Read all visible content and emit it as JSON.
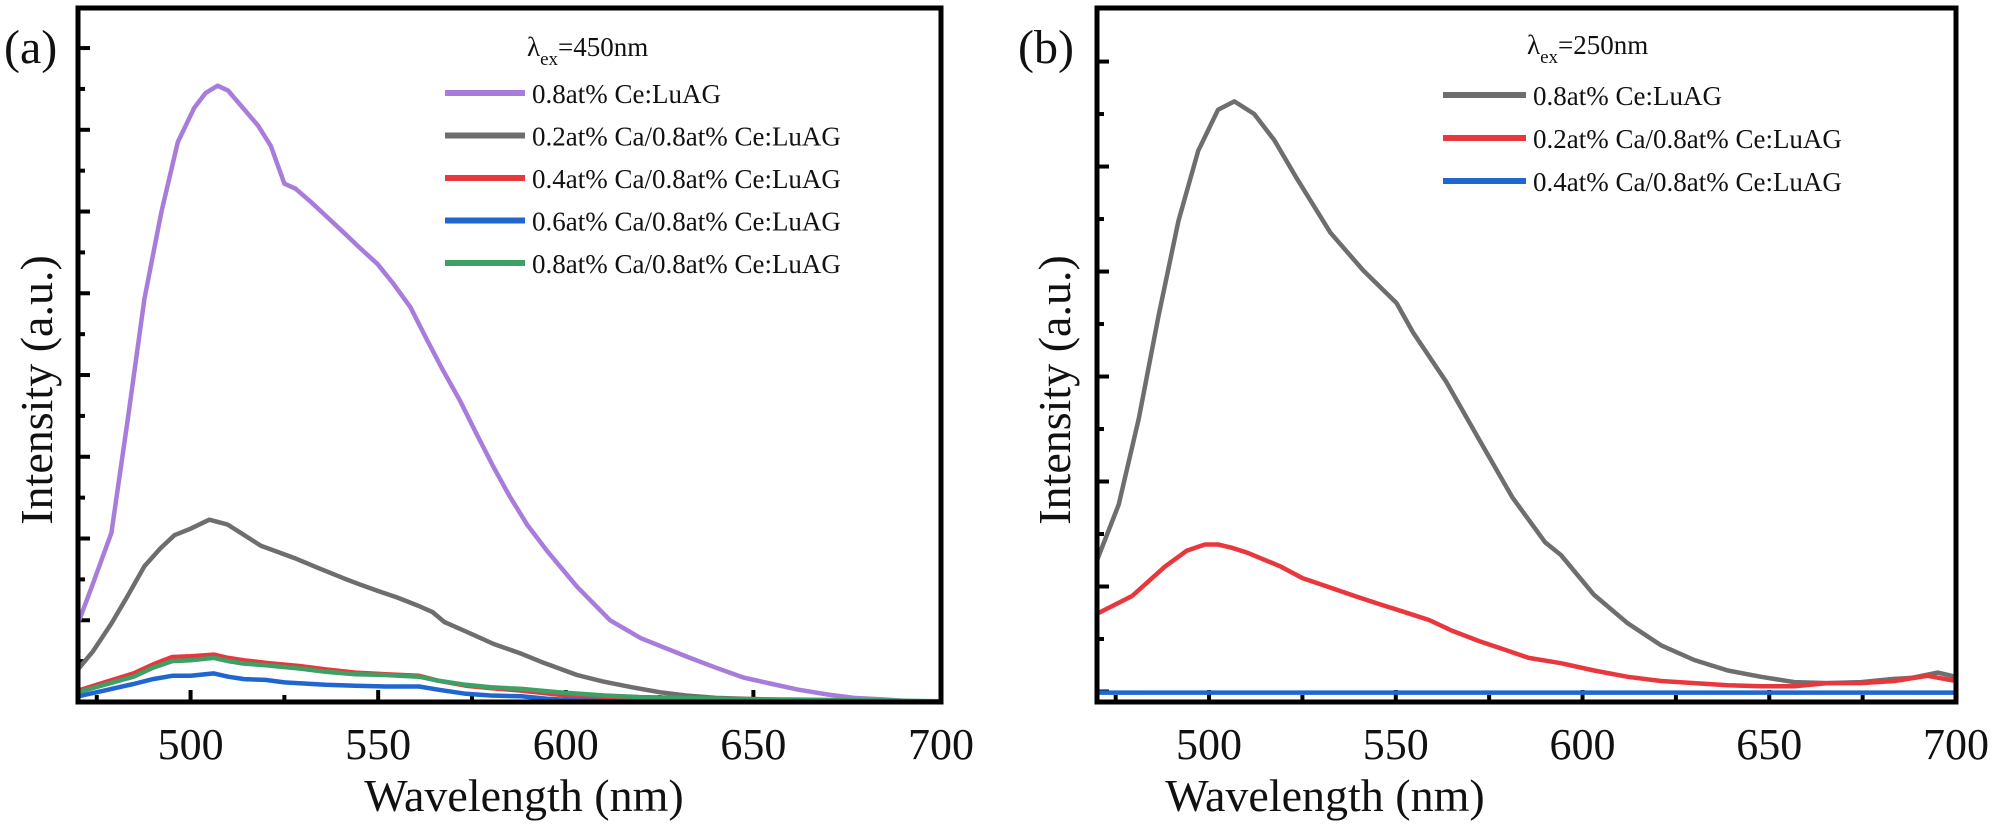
{
  "chart_data": [
    {
      "type": "line",
      "panel_label": "(a)",
      "xlabel": "Wavelength (nm)",
      "ylabel": "Intensity (a.u.)",
      "xlim": [
        470,
        700
      ],
      "ylim": [
        0,
        8.49
      ],
      "x_ticks": [
        500,
        550,
        600,
        650,
        700
      ],
      "x_tick_labels": [
        "500",
        "550",
        "600",
        "650",
        "700"
      ],
      "x_minor_ticks": [
        475,
        525,
        575,
        625,
        675
      ],
      "y_major_ticks": [
        0,
        1,
        2,
        3,
        4,
        5,
        6,
        7,
        8
      ],
      "y_minor_ticks": [
        0.5,
        1.5,
        2.5,
        3.5,
        4.5,
        5.5,
        6.5,
        7.5
      ],
      "y_tick_labels": [],
      "grid": false,
      "legend_title": {
        "symbol": "λ",
        "sub": "ex",
        "text": "=450nm"
      },
      "legend_position": "top-right",
      "series": [
        {
          "name": "0.8at% Ce:LuAG",
          "color": "#A77CDB",
          "x": [
            470,
            474,
            478.9,
            483.3,
            487.7,
            492.2,
            496.6,
            501,
            504,
            507.2,
            510,
            514.3,
            518,
            521.4,
            525,
            528,
            532,
            536,
            540.9,
            545,
            549.8,
            554,
            558.6,
            563,
            567,
            571.9,
            576,
            580.8,
            585,
            589.7,
            595,
            603,
            611.8,
            620,
            632.5,
            640,
            647.3,
            655,
            662,
            670,
            676.8,
            685,
            692,
            700
          ],
          "y": [
            0.96,
            1.45,
            2.07,
            3.47,
            4.93,
            5.99,
            6.85,
            7.27,
            7.45,
            7.54,
            7.48,
            7.25,
            7.05,
            6.8,
            6.34,
            6.28,
            6.12,
            5.95,
            5.74,
            5.56,
            5.36,
            5.12,
            4.83,
            4.43,
            4.08,
            3.68,
            3.3,
            2.87,
            2.52,
            2.17,
            1.85,
            1.41,
            1.0,
            0.78,
            0.55,
            0.42,
            0.3,
            0.22,
            0.15,
            0.09,
            0.05,
            0.03,
            0.01,
            0.0
          ]
        },
        {
          "name": "0.2at% Ca/0.8at% Ce:LuAG",
          "color": "#6E6E6E",
          "x": [
            470,
            474,
            478.9,
            483,
            487.7,
            492,
            495.7,
            500,
            505,
            509.9,
            514,
            518.8,
            523,
            527.7,
            534,
            541,
            545,
            549.8,
            555,
            560.5,
            564.5,
            567.6,
            574,
            580.8,
            588.2,
            594.1,
            603,
            610,
            617.7,
            625,
            632,
            640,
            647.3,
            655,
            665,
            680,
            700
          ],
          "y": [
            0.4,
            0.62,
            0.96,
            1.28,
            1.66,
            1.88,
            2.04,
            2.12,
            2.23,
            2.17,
            2.05,
            1.91,
            1.84,
            1.76,
            1.64,
            1.51,
            1.44,
            1.36,
            1.28,
            1.18,
            1.1,
            0.98,
            0.85,
            0.71,
            0.59,
            0.48,
            0.33,
            0.25,
            0.18,
            0.12,
            0.08,
            0.05,
            0.04,
            0.03,
            0.02,
            0.01,
            0.0
          ]
        },
        {
          "name": "0.4at% Ca/0.8at% Ce:LuAG",
          "color": "#E8383D",
          "x": [
            470,
            477,
            484.8,
            490,
            495.1,
            500,
            506.2,
            510,
            514.3,
            520,
            529,
            536,
            543.9,
            552,
            560.9,
            566,
            573.4,
            580,
            588.2,
            598,
            610.3,
            620,
            632.5,
            650,
            675,
            700
          ],
          "y": [
            0.14,
            0.24,
            0.35,
            0.46,
            0.55,
            0.56,
            0.58,
            0.54,
            0.51,
            0.48,
            0.44,
            0.4,
            0.36,
            0.34,
            0.32,
            0.26,
            0.2,
            0.17,
            0.14,
            0.09,
            0.04,
            0.02,
            0.01,
            0.01,
            0.0,
            0.0
          ]
        },
        {
          "name": "0.6at% Ca/0.8at% Ce:LuAG",
          "color": "#1F66D1",
          "x": [
            470,
            477,
            484.8,
            490,
            495.1,
            500,
            506.2,
            510,
            514.3,
            520,
            525,
            529,
            536,
            543.9,
            552,
            560.9,
            566,
            573.4,
            580,
            588.2,
            595,
            603,
            617.9,
            640,
            670,
            700
          ],
          "y": [
            0.07,
            0.14,
            0.22,
            0.28,
            0.32,
            0.32,
            0.35,
            0.31,
            0.28,
            0.27,
            0.24,
            0.23,
            0.21,
            0.2,
            0.19,
            0.19,
            0.15,
            0.1,
            0.08,
            0.07,
            0.04,
            0.02,
            0.0,
            0.0,
            0.0,
            0.0
          ]
        },
        {
          "name": "0.8at% Ca/0.8at% Ce:LuAG",
          "color": "#3DA065",
          "x": [
            470,
            477,
            484.8,
            490,
            495.1,
            500,
            506.2,
            510,
            514.3,
            520,
            529,
            536,
            543.9,
            552,
            560.9,
            566,
            573.4,
            580,
            588.2,
            598,
            610.3,
            620,
            632.5,
            650,
            660,
            680,
            700
          ],
          "y": [
            0.12,
            0.21,
            0.31,
            0.42,
            0.5,
            0.51,
            0.54,
            0.5,
            0.47,
            0.45,
            0.41,
            0.37,
            0.34,
            0.33,
            0.31,
            0.26,
            0.21,
            0.18,
            0.16,
            0.12,
            0.08,
            0.06,
            0.05,
            0.03,
            0.03,
            0.02,
            0.01
          ]
        }
      ]
    },
    {
      "type": "line",
      "panel_label": "(b)",
      "xlabel": "Wavelength (nm)",
      "ylabel": "Intensity (a.u.)",
      "xlim": [
        470,
        700
      ],
      "ylim": [
        0,
        6.61
      ],
      "x_ticks": [
        500,
        550,
        600,
        650,
        700
      ],
      "x_tick_labels": [
        "500",
        "550",
        "600",
        "650",
        "700"
      ],
      "x_minor_ticks": [
        475,
        525,
        575,
        625,
        675
      ],
      "y_major_ticks": [
        0.1,
        1.1,
        2.1,
        3.1,
        4.1,
        5.1,
        6.1
      ],
      "y_minor_ticks": [
        0.6,
        1.6,
        2.6,
        3.6,
        4.6,
        5.6
      ],
      "y_tick_labels": [],
      "grid": false,
      "legend_title": {
        "symbol": "λ",
        "sub": "ex",
        "text": "=250nm"
      },
      "legend_position": "top-right",
      "series": [
        {
          "name": "0.8at% Ce:LuAG",
          "color": "#6E6E6E",
          "x": [
            470,
            475.8,
            481.2,
            486.5,
            491.8,
            497.1,
            502.4,
            506.8,
            512.1,
            517.5,
            523.6,
            532.5,
            541.3,
            550.2,
            554.6,
            563.5,
            572.3,
            581.2,
            590,
            594.2,
            603.1,
            612.1,
            621,
            629.9,
            638.9,
            647.8,
            656.7,
            665.6,
            674.6,
            683.5,
            688,
            695.1,
            700
          ],
          "y": [
            1.35,
            1.88,
            2.7,
            3.68,
            4.58,
            5.25,
            5.64,
            5.72,
            5.6,
            5.35,
            4.98,
            4.47,
            4.11,
            3.8,
            3.52,
            3.05,
            2.5,
            1.95,
            1.52,
            1.4,
            1.02,
            0.75,
            0.54,
            0.4,
            0.3,
            0.24,
            0.19,
            0.18,
            0.19,
            0.22,
            0.23,
            0.28,
            0.24
          ]
        },
        {
          "name": "0.2at% Ca/0.8at% Ce:LuAG",
          "color": "#E8383D",
          "x": [
            470,
            479.4,
            488.2,
            494,
            498.9,
            502.4,
            506,
            510.4,
            519.2,
            525,
            532.5,
            539,
            545.8,
            552,
            559,
            565,
            572.3,
            579,
            585.6,
            594.2,
            603.1,
            612.1,
            621,
            629.9,
            638.9,
            647.8,
            656.7,
            665.6,
            674.6,
            683.5,
            692.4,
            700
          ],
          "y": [
            0.84,
            1.01,
            1.29,
            1.44,
            1.5,
            1.5,
            1.47,
            1.42,
            1.29,
            1.18,
            1.09,
            1.01,
            0.93,
            0.86,
            0.78,
            0.68,
            0.58,
            0.5,
            0.42,
            0.37,
            0.3,
            0.24,
            0.2,
            0.18,
            0.16,
            0.15,
            0.15,
            0.18,
            0.18,
            0.2,
            0.25,
            0.2
          ]
        },
        {
          "name": "0.4at% Ca/0.8at% Ce:LuAG",
          "color": "#1F66D1",
          "x": [
            470,
            700
          ],
          "y": [
            0.09,
            0.09
          ]
        }
      ]
    }
  ]
}
